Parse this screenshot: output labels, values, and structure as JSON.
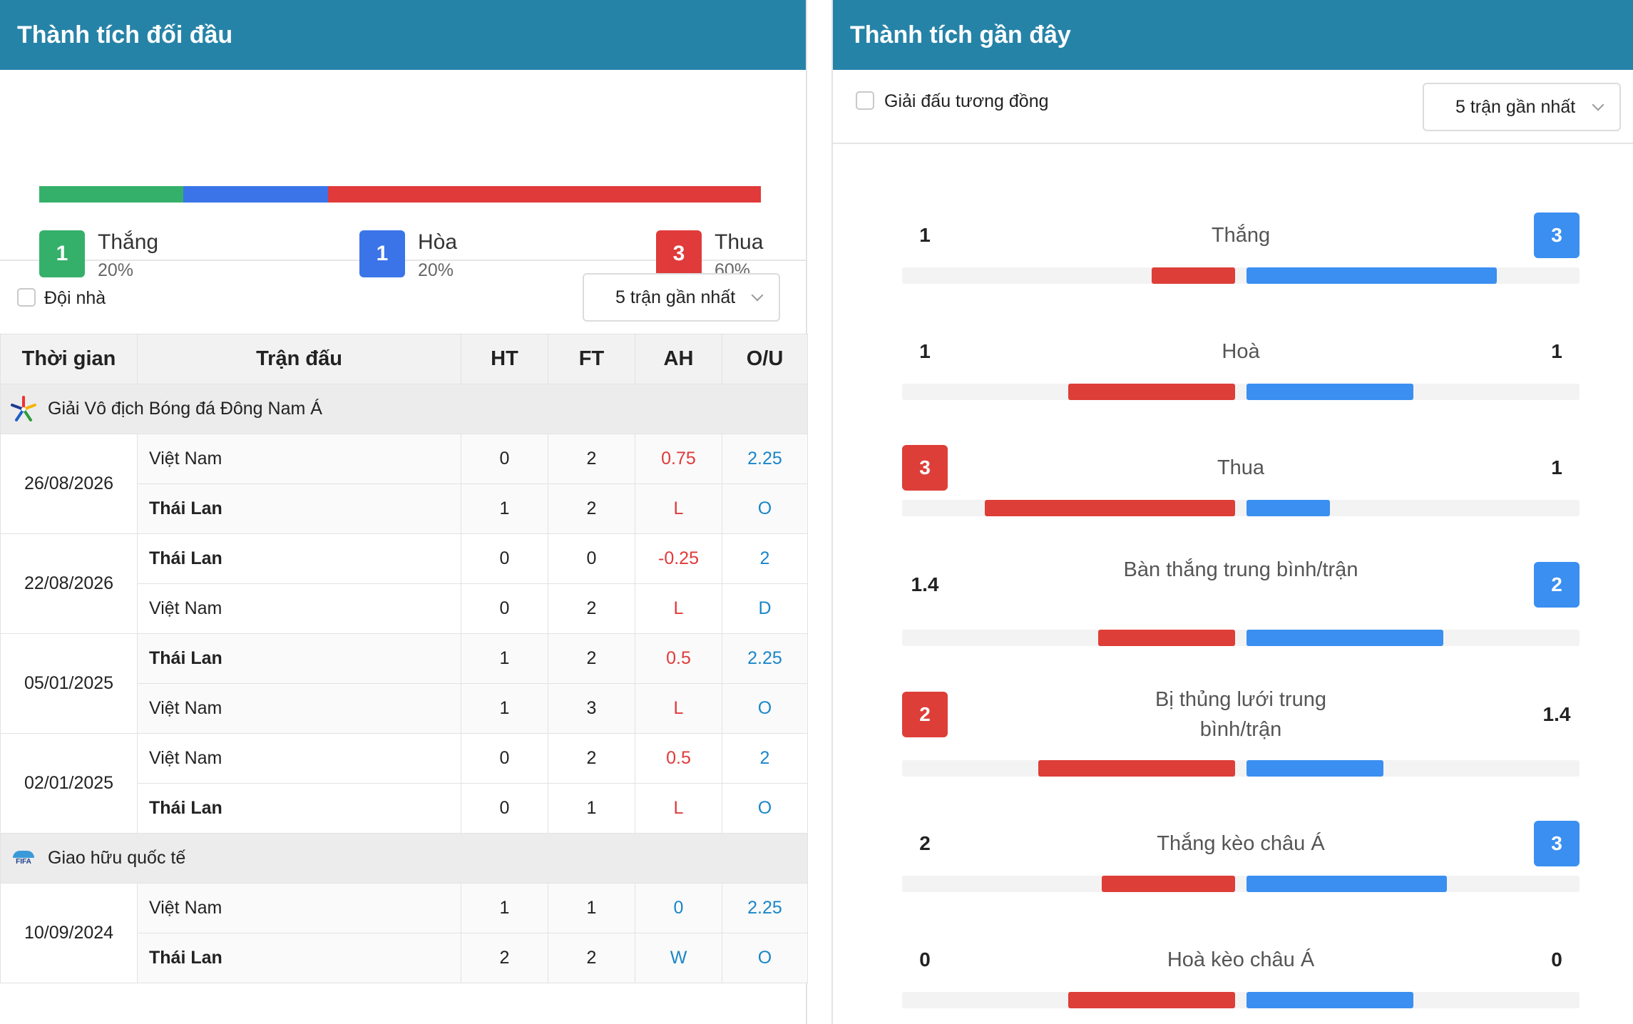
{
  "colors": {
    "header": "#2683a8",
    "win": "#35b06a",
    "draw": "#3a74e8",
    "loss": "#e03a3a",
    "home": "#dd3e38",
    "away": "#3a8ff0"
  },
  "left": {
    "title": "Thành tích đối đầu",
    "summary": {
      "bar": [
        0.2,
        0.2,
        0.6
      ],
      "win": {
        "count": "1",
        "label": "Thắng",
        "pct": "20%"
      },
      "draw": {
        "count": "1",
        "label": "Hòa",
        "pct": "20%"
      },
      "loss": {
        "count": "3",
        "label": "Thua",
        "pct": "60%"
      }
    },
    "filter": {
      "checkbox_label": "Đội nhà",
      "select_value": "5 trận gần nhất"
    },
    "table": {
      "headers": [
        "Thời gian",
        "Trận đấu",
        "HT",
        "FT",
        "AH",
        "O/U"
      ],
      "leagues": [
        {
          "name": "Giải Vô địch Bóng đá Đông Nam Á",
          "icon": "aff-star-icon",
          "matches": [
            {
              "date": "26/08/2026",
              "rows": [
                {
                  "team": "Việt Nam",
                  "bold": false,
                  "ht": "0",
                  "ft": "2",
                  "ah": "0.75",
                  "ah_color": "red",
                  "ou": "2.25",
                  "ou_color": "blue"
                },
                {
                  "team": "Thái Lan",
                  "bold": true,
                  "ht": "1",
                  "ft": "2",
                  "ah": "L",
                  "ah_color": "red",
                  "ou": "O",
                  "ou_color": "blue"
                }
              ]
            },
            {
              "date": "22/08/2026",
              "rows": [
                {
                  "team": "Thái Lan",
                  "bold": true,
                  "ht": "0",
                  "ft": "0",
                  "ah": "-0.25",
                  "ah_color": "red",
                  "ou": "2",
                  "ou_color": "blue"
                },
                {
                  "team": "Việt Nam",
                  "bold": false,
                  "ht": "0",
                  "ft": "2",
                  "ah": "L",
                  "ah_color": "red",
                  "ou": "D",
                  "ou_color": "blue"
                }
              ]
            },
            {
              "date": "05/01/2025",
              "rows": [
                {
                  "team": "Thái Lan",
                  "bold": true,
                  "ht": "1",
                  "ft": "2",
                  "ah": "0.5",
                  "ah_color": "red",
                  "ou": "2.25",
                  "ou_color": "blue"
                },
                {
                  "team": "Việt Nam",
                  "bold": false,
                  "ht": "1",
                  "ft": "3",
                  "ah": "L",
                  "ah_color": "red",
                  "ou": "O",
                  "ou_color": "blue"
                }
              ]
            },
            {
              "date": "02/01/2025",
              "rows": [
                {
                  "team": "Việt Nam",
                  "bold": false,
                  "ht": "0",
                  "ft": "2",
                  "ah": "0.5",
                  "ah_color": "red",
                  "ou": "2",
                  "ou_color": "blue"
                },
                {
                  "team": "Thái Lan",
                  "bold": true,
                  "ht": "0",
                  "ft": "1",
                  "ah": "L",
                  "ah_color": "red",
                  "ou": "O",
                  "ou_color": "blue"
                }
              ]
            }
          ]
        },
        {
          "name": "Giao hữu quốc tế",
          "icon": "fifa-logo-icon",
          "icon_text": "FIFA",
          "matches": [
            {
              "date": "10/09/2024",
              "rows": [
                {
                  "team": "Việt Nam",
                  "bold": false,
                  "ht": "1",
                  "ft": "1",
                  "ah": "0",
                  "ah_color": "blue",
                  "ou": "2.25",
                  "ou_color": "blue"
                },
                {
                  "team": "Thái Lan",
                  "bold": true,
                  "ht": "2",
                  "ft": "2",
                  "ah": "W",
                  "ah_color": "blue",
                  "ou": "O",
                  "ou_color": "blue"
                }
              ]
            }
          ]
        }
      ]
    }
  },
  "right": {
    "title": "Thành tích gần đây",
    "filter": {
      "checkbox_label": "Giải đấu tương đồng",
      "select_value": "5 trận gần nhất"
    },
    "comparisons": [
      {
        "label": "Thắng",
        "left": "1",
        "right": "3",
        "left_badge": false,
        "right_badge": true,
        "left_bar": 0.25,
        "right_bar": 0.75
      },
      {
        "label": "Hoà",
        "left": "1",
        "right": "1",
        "left_badge": false,
        "right_badge": false,
        "left_bar": 0.5,
        "right_bar": 0.5
      },
      {
        "label": "Thua",
        "left": "3",
        "right": "1",
        "left_badge": true,
        "right_badge": false,
        "left_bar": 0.75,
        "right_bar": 0.25
      },
      {
        "label": "Bàn thắng trung bình/trận",
        "left": "1.4",
        "right": "2",
        "left_badge": false,
        "right_badge": true,
        "left_bar": 0.41,
        "right_bar": 0.59
      },
      {
        "label": "Bị thủng lưới trung bình/trận",
        "left": "2",
        "right": "1.4",
        "left_badge": true,
        "right_badge": false,
        "left_bar": 0.59,
        "right_bar": 0.41
      },
      {
        "label": "Thắng kèo châu Á",
        "left": "2",
        "right": "3",
        "left_badge": false,
        "right_badge": true,
        "left_bar": 0.4,
        "right_bar": 0.6
      },
      {
        "label": "Hoà kèo châu Á",
        "left": "0",
        "right": "0",
        "left_badge": false,
        "right_badge": false,
        "left_bar": 0.5,
        "right_bar": 0.5
      }
    ]
  }
}
